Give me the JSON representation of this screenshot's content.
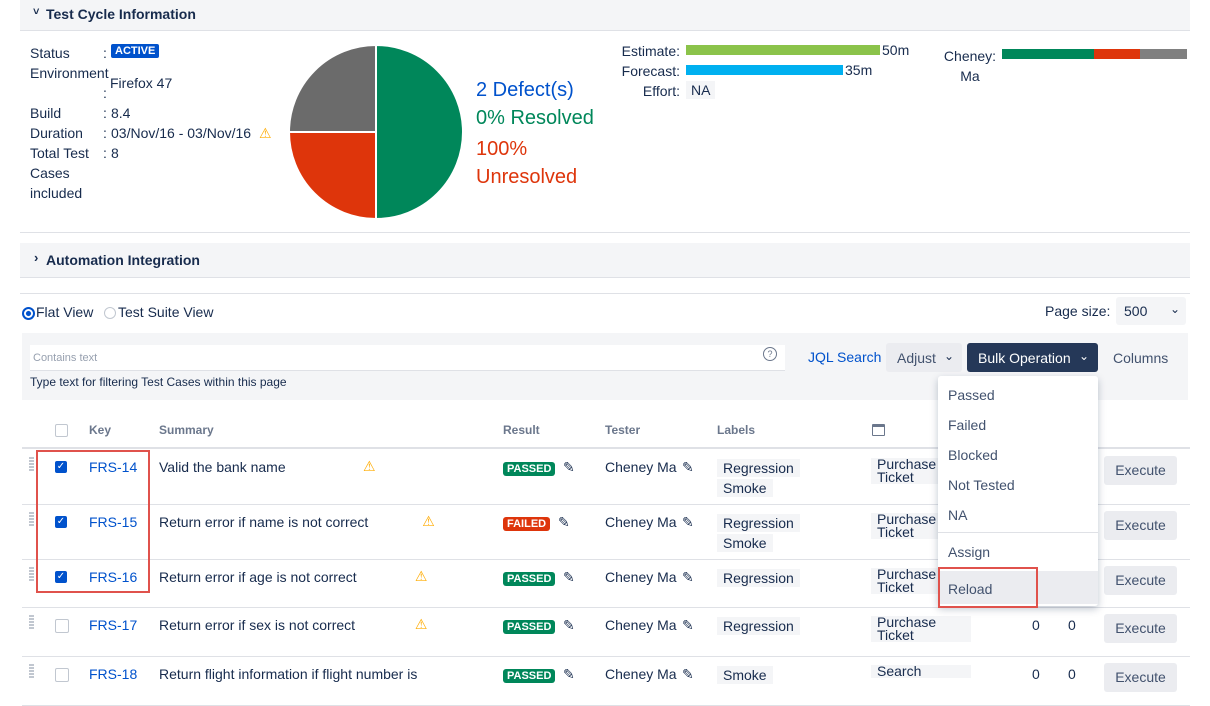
{
  "test_cycle": {
    "title": "Test Cycle Information",
    "fields": [
      {
        "label": "Status",
        "value": "ACTIVE"
      },
      {
        "label": "Environment",
        "value": "Firefox 47"
      },
      {
        "label": "Build",
        "value": "8.4"
      },
      {
        "label": "Duration",
        "value": "03/Nov/16 - 03/Nov/16"
      },
      {
        "label": "Total Test Cases included",
        "value": "8"
      }
    ],
    "defect_pie": {
      "values": [
        50,
        25,
        25
      ],
      "colors": [
        "#00875a",
        "#de350b",
        "#6b6b6b"
      ]
    },
    "defects": {
      "count": "2 Defect(s)",
      "resolved": "0% Resolved",
      "unresolved": "100% Unresolved"
    },
    "estimate": {
      "label": "Estimate:",
      "value": "50m"
    },
    "forecast": {
      "label": "Forecast:",
      "value": "35m"
    },
    "effort": {
      "label": "Effort:",
      "value": "NA"
    },
    "tester": "Cheney: Ma"
  },
  "automation": {
    "title": "Automation Integration"
  },
  "views": [
    "Flat View",
    "Test Suite View"
  ],
  "page_size": {
    "label": "Page size:",
    "value": "500"
  },
  "filter": {
    "placeholder": "Contains text",
    "hint": "Type text for filtering Test Cases within this page"
  },
  "toolbar": [
    "JQL Search",
    "Adjust",
    "Bulk Operation",
    "Columns"
  ],
  "bulk_menu": [
    "Passed",
    "Failed",
    "Blocked",
    "Not Tested",
    "NA",
    "Assign",
    "Reload"
  ],
  "table": {
    "headers": [
      "Key",
      "Summary",
      "Result",
      "Tester",
      "Labels"
    ],
    "rows": [
      {
        "checked": true,
        "key": "FRS-14",
        "summary": "Valid the bank name",
        "warning": true,
        "result": "PASSED",
        "tester": "Cheney Ma",
        "labels": [
          "Regression",
          "Smoke"
        ],
        "component": "Purchase Ticket",
        "action": "Execute"
      },
      {
        "checked": true,
        "key": "FRS-15",
        "summary": "Return error if name is not correct",
        "warning": true,
        "result": "FAILED",
        "tester": "Cheney Ma",
        "labels": [
          "Regression",
          "Smoke"
        ],
        "component": "Purchase Ticket",
        "action": "Execute"
      },
      {
        "checked": true,
        "key": "FRS-16",
        "summary": "Return error if age is not correct",
        "warning": true,
        "result": "PASSED",
        "tester": "Cheney Ma",
        "labels": [
          "Regression"
        ],
        "component": "Purchase Ticket",
        "action": "Execute"
      },
      {
        "checked": false,
        "key": "FRS-17",
        "summary": "Return error if sex is not correct",
        "warning": true,
        "result": "PASSED",
        "tester": "Cheney Ma",
        "labels": [
          "Regression"
        ],
        "component": "Purchase Ticket",
        "counts": [
          0,
          0
        ],
        "action": "Execute"
      },
      {
        "checked": false,
        "key": "FRS-18",
        "summary": "Return flight information if flight number is",
        "warning": false,
        "result": "PASSED",
        "tester": "Cheney Ma",
        "labels": [
          "Smoke"
        ],
        "component": "Search",
        "counts": [
          0,
          0
        ],
        "action": "Execute"
      }
    ]
  }
}
